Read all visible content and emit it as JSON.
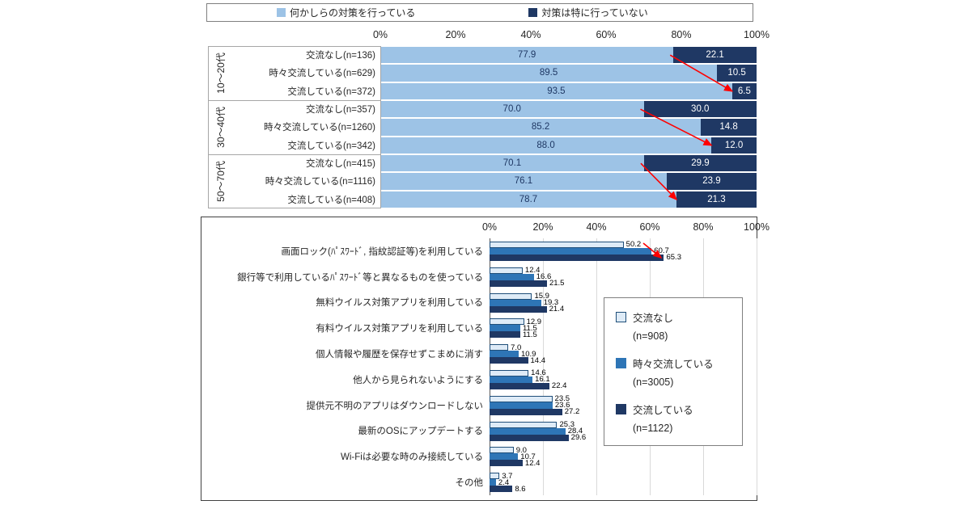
{
  "colors": {
    "measures_taken": "#9DC3E6",
    "no_measures": "#1F3864",
    "series_none": "#DEEBF7",
    "series_none_border": "#1F4E79",
    "series_sometimes": "#2E75B6",
    "series_often": "#1F3864",
    "trend_arrow": "#FF0000",
    "gridline": "#D9D9D9"
  },
  "chart_data": [
    {
      "type": "bar",
      "mode": "stacked",
      "orientation": "horizontal",
      "xlim": [
        0,
        100
      ],
      "x_ticks": [
        "0%",
        "20%",
        "40%",
        "60%",
        "80%",
        "100%"
      ],
      "legend_position": "top",
      "legend": [
        {
          "label": "何かしらの対策を行っている",
          "color": "#9DC3E6"
        },
        {
          "label": "対策は特に行っていない",
          "color": "#1F3864"
        }
      ],
      "groups": [
        {
          "label": "10〜20代",
          "rows": [
            {
              "label": "交流なし(n=136)",
              "values": [
                "77.9",
                "22.1"
              ]
            },
            {
              "label": "時々交流している(n=629)",
              "values": [
                "89.5",
                "10.5"
              ]
            },
            {
              "label": "交流している(n=372)",
              "values": [
                "93.5",
                "6.5"
              ]
            }
          ]
        },
        {
          "label": "30〜40代",
          "rows": [
            {
              "label": "交流なし(n=357)",
              "values": [
                "70.0",
                "30.0"
              ]
            },
            {
              "label": "時々交流している(n=1260)",
              "values": [
                "85.2",
                "14.8"
              ]
            },
            {
              "label": "交流している(n=342)",
              "values": [
                "88.0",
                "12.0"
              ]
            }
          ]
        },
        {
          "label": "50〜70代",
          "rows": [
            {
              "label": "交流なし(n=415)",
              "values": [
                "70.1",
                "29.9"
              ]
            },
            {
              "label": "時々交流している(n=1116)",
              "values": [
                "76.1",
                "23.9"
              ]
            },
            {
              "label": "交流している(n=408)",
              "values": [
                "78.7",
                "21.3"
              ]
            }
          ]
        }
      ],
      "annotations": {
        "trend_arrows": {
          "color": "#FF0000",
          "count": 3
        }
      }
    },
    {
      "type": "bar",
      "mode": "grouped",
      "orientation": "horizontal",
      "xlim": [
        0,
        100
      ],
      "x_ticks": [
        "0%",
        "20%",
        "40%",
        "60%",
        "80%",
        "100%"
      ],
      "grid": true,
      "legend_position": "right-inside",
      "categories": [
        "画面ロック(ﾊﾟｽﾜｰﾄﾞ, 指紋認証等)を利用している",
        "銀行等で利用しているﾊﾟｽﾜｰﾄﾞ等と異なるものを使っている",
        "無料ウイルス対策アプリを利用している",
        "有料ウイルス対策アプリを利用している",
        "個人情報や履歴を保存せずこまめに消す",
        "他人から見られないようにする",
        "提供元不明のアプリはダウンロードしない",
        "最新のOSにアップデートする",
        "Wi-Fiは必要な時のみ接続している",
        "その他"
      ],
      "series": [
        {
          "name": "交流なし",
          "n": "(n=908)",
          "color": "#DEEBF7",
          "border": "#1F4E79",
          "values": [
            "50.2",
            "12.4",
            "15.9",
            "12.9",
            "7.0",
            "14.6",
            "23.5",
            "25.3",
            "9.0",
            "3.7"
          ]
        },
        {
          "name": "時々交流している",
          "n": "(n=3005)",
          "color": "#2E75B6",
          "values": [
            "60.7",
            "16.6",
            "19.3",
            "11.5",
            "10.9",
            "16.1",
            "23.6",
            "28.4",
            "10.7",
            "2.4"
          ]
        },
        {
          "name": "交流している",
          "n": "(n=1122)",
          "color": "#1F3864",
          "values": [
            "65.3",
            "21.5",
            "21.4",
            "11.5",
            "14.4",
            "22.4",
            "27.2",
            "29.6",
            "12.4",
            "8.6"
          ]
        }
      ],
      "annotations": {
        "trend_arrows": {
          "color": "#FF0000",
          "count": 1
        }
      }
    }
  ]
}
